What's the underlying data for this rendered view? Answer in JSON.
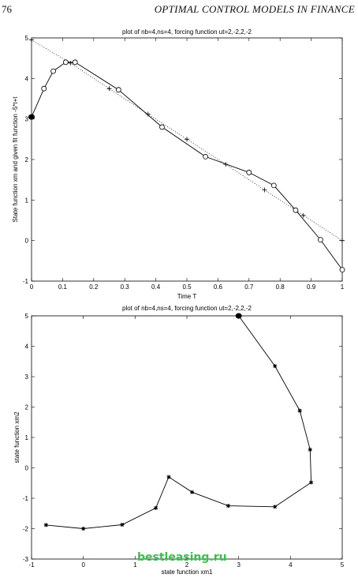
{
  "page": {
    "number": "76",
    "running_head": "OPTIMAL CONTROL MODELS IN FINANCE",
    "watermark": "bestleasing.ru"
  },
  "chart_data": [
    {
      "type": "line",
      "title": "plot of nb=4,ns=4, forcing function ut=2,-2,2,-2",
      "xlabel": "Time T",
      "ylabel": "State function xm and given fit function -5*t+t",
      "xlim": [
        0,
        1
      ],
      "ylim": [
        -1,
        5
      ],
      "xticks": [
        0,
        0.1,
        0.2,
        0.3,
        0.4,
        0.5,
        0.6,
        0.7,
        0.8,
        0.9,
        1
      ],
      "yticks": [
        -1,
        0,
        1,
        2,
        3,
        4,
        5
      ],
      "grid": false,
      "series": [
        {
          "marker": "circle",
          "style": "solid",
          "x": [
            0,
            0.04,
            0.07,
            0.11,
            0.14,
            0.28,
            0.42,
            0.56,
            0.7,
            0.78,
            0.85,
            0.93,
            1.0
          ],
          "y": [
            3.05,
            3.75,
            4.18,
            4.4,
            4.4,
            3.72,
            2.8,
            2.07,
            1.68,
            1.36,
            0.75,
            0.02,
            -0.72
          ]
        },
        {
          "marker": "plus",
          "style": "dotted",
          "x": [
            0,
            0.125,
            0.25,
            0.375,
            0.5,
            0.625,
            0.75,
            0.875,
            1.0
          ],
          "y": [
            4.95,
            4.38,
            3.75,
            3.12,
            2.5,
            1.88,
            1.25,
            0.62,
            0.0
          ]
        }
      ],
      "annotations": [
        {
          "type": "filled-dot",
          "x": 0,
          "y": 3.05
        }
      ]
    },
    {
      "type": "line",
      "title": "plot of nb=4,ns=4, forcing function ut=2,-2,2,-2",
      "xlabel": "state function xm1",
      "ylabel": "state function xm2",
      "xlim": [
        -1,
        5
      ],
      "ylim": [
        -3,
        5
      ],
      "xticks": [
        -1,
        0,
        1,
        2,
        3,
        4,
        5
      ],
      "yticks": [
        -3,
        -2,
        -1,
        0,
        1,
        2,
        3,
        4,
        5
      ],
      "grid": false,
      "series": [
        {
          "marker": "star",
          "style": "solid",
          "x": [
            3.0,
            3.7,
            4.18,
            4.38,
            4.4,
            3.7,
            2.8,
            2.1,
            1.65,
            1.4,
            0.75,
            0.0,
            -0.72
          ],
          "y": [
            5.0,
            3.35,
            1.88,
            0.6,
            -0.48,
            -1.28,
            -1.25,
            -0.8,
            -0.3,
            -1.32,
            -1.87,
            -2.0,
            -1.88
          ]
        }
      ],
      "annotations": [
        {
          "type": "filled-dot",
          "x": 3.0,
          "y": 5.0
        }
      ]
    }
  ]
}
